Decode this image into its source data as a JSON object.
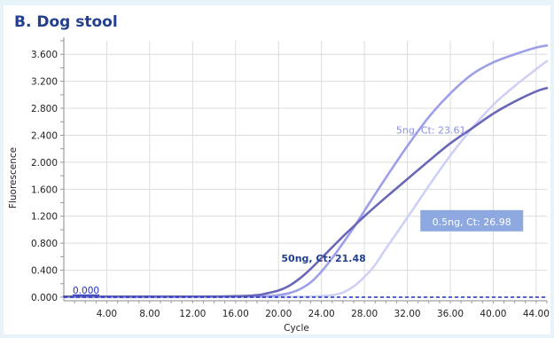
{
  "chart_data": {
    "type": "line",
    "title": "B. Dog stool",
    "xlabel": "Cycle",
    "ylabel": "Fluorescence",
    "xlim": [
      0,
      45
    ],
    "ylim": [
      0,
      3.8
    ],
    "x_ticks": [
      "4.00",
      "8.00",
      "12.00",
      "16.00",
      "20.00",
      "24.00",
      "28.00",
      "32.00",
      "36.00",
      "40.00",
      "44.00"
    ],
    "x_tick_values": [
      4,
      8,
      12,
      16,
      20,
      24,
      28,
      32,
      36,
      40,
      44
    ],
    "y_ticks": [
      "0.000",
      "0.400",
      "0.800",
      "1.200",
      "1.600",
      "2.000",
      "2.400",
      "2.800",
      "3.200",
      "3.600"
    ],
    "y_tick_values": [
      0,
      0.4,
      0.8,
      1.2,
      1.6,
      2.0,
      2.4,
      2.8,
      3.2,
      3.6
    ],
    "grid": true,
    "threshold": {
      "value": 0.0,
      "label": "0.000",
      "color": "#1f2fc0"
    },
    "series": [
      {
        "name": "5ng, Ct: 23.61",
        "color": "#9d9fe8",
        "x": [
          0,
          12,
          16,
          18,
          19,
          20,
          21,
          22,
          23,
          24,
          25,
          26,
          27,
          28,
          30,
          32,
          34,
          36,
          38,
          40,
          42,
          44,
          45
        ],
        "y": [
          0.01,
          0.01,
          0.01,
          0.01,
          0.015,
          0.03,
          0.06,
          0.12,
          0.22,
          0.38,
          0.58,
          0.8,
          1.03,
          1.28,
          1.77,
          2.24,
          2.67,
          3.02,
          3.3,
          3.48,
          3.6,
          3.7,
          3.73
        ]
      },
      {
        "name": "50ng, Ct: 21.48",
        "color": "#6a67b8",
        "x": [
          0,
          12,
          16,
          18,
          19,
          20,
          21,
          22,
          23,
          24,
          25,
          26,
          27,
          28,
          30,
          32,
          34,
          36,
          38,
          40,
          42,
          44,
          45
        ],
        "y": [
          0.01,
          0.01,
          0.015,
          0.03,
          0.06,
          0.1,
          0.17,
          0.28,
          0.42,
          0.58,
          0.74,
          0.9,
          1.05,
          1.2,
          1.48,
          1.75,
          2.02,
          2.28,
          2.5,
          2.72,
          2.9,
          3.05,
          3.1
        ]
      },
      {
        "name": "0.5ng, Ct: 26.98",
        "color": "#cfd0f5",
        "x": [
          0,
          12,
          20,
          23,
          25,
          26,
          27,
          28,
          29,
          30,
          32,
          34,
          36,
          38,
          40,
          42,
          44,
          45
        ],
        "y": [
          0.0,
          0.0,
          0.005,
          0.01,
          0.03,
          0.07,
          0.16,
          0.3,
          0.48,
          0.72,
          1.18,
          1.65,
          2.1,
          2.5,
          2.85,
          3.13,
          3.38,
          3.5
        ]
      }
    ],
    "annotations": [
      {
        "text": "5ng, Ct: 23.61",
        "x": 34.2,
        "y": 2.48,
        "color": "#8a90e0",
        "boxed": false
      },
      {
        "text": "50ng, Ct: 21.48",
        "x": 24.2,
        "y": 0.58,
        "color": "#23408f",
        "boxed": false
      },
      {
        "text": "0.5ng, Ct: 26.98",
        "x": 38.0,
        "y": 1.12,
        "color": "#ffffff",
        "boxed": true,
        "box_color": "#8ea9e0"
      }
    ]
  }
}
